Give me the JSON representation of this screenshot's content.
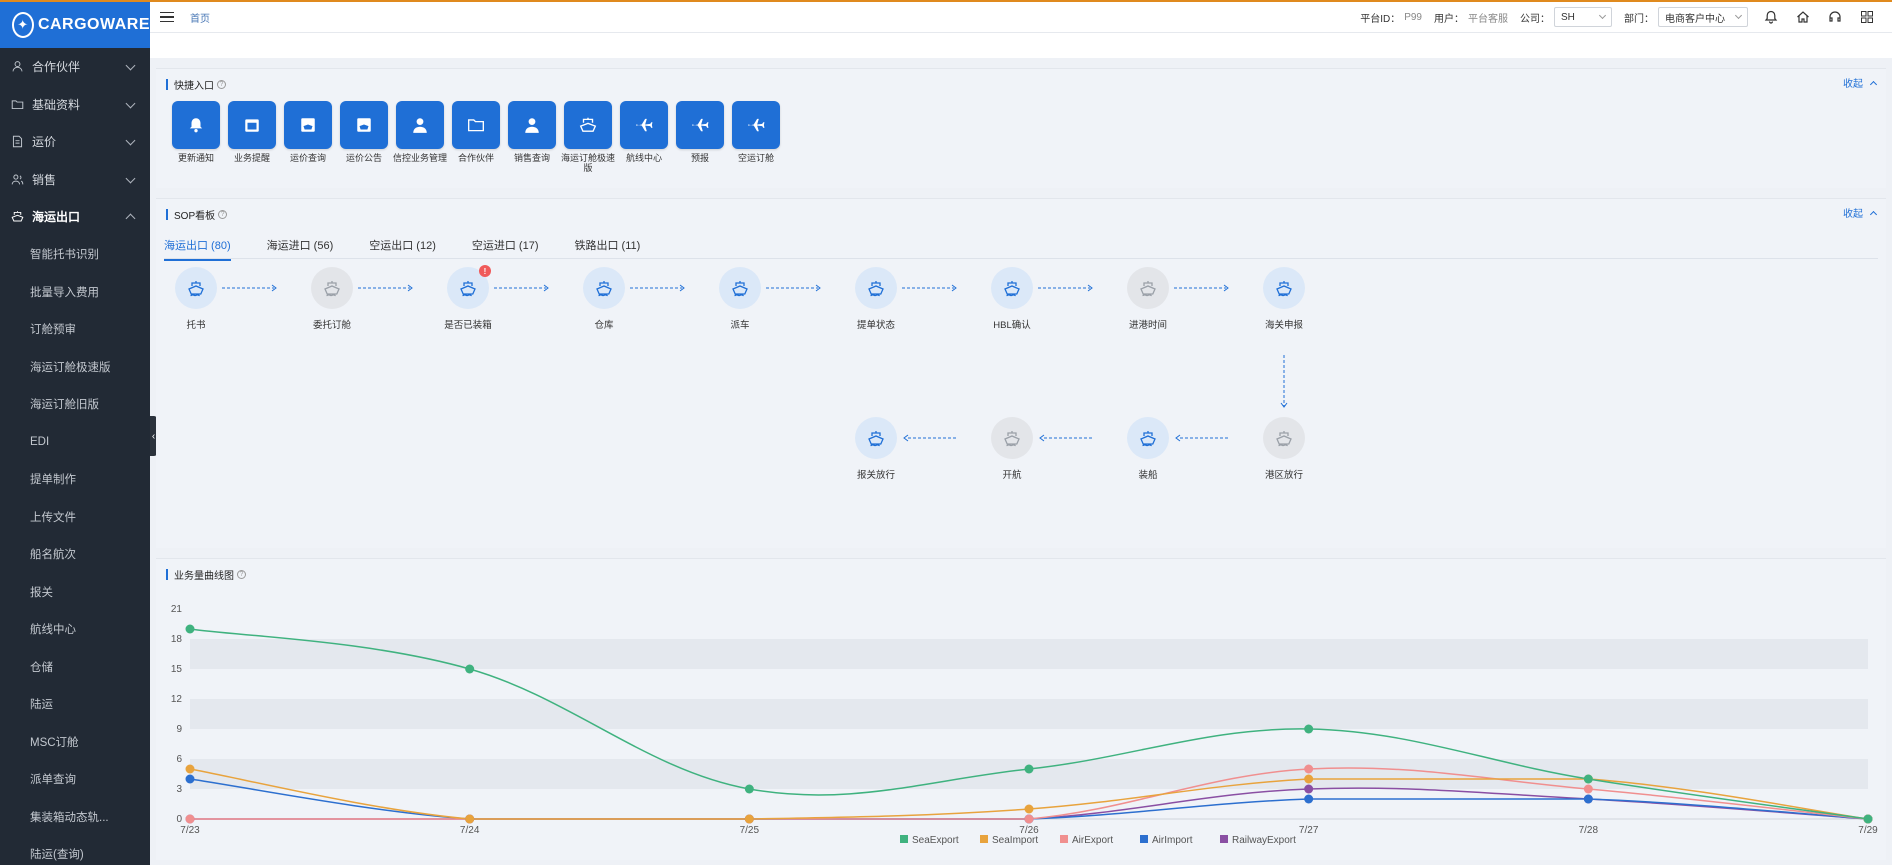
{
  "brand": {
    "name": "CARGOWARE",
    "color": "#1f6fd6"
  },
  "sidebar": {
    "groups": [
      {
        "label": "合作伙伴",
        "icon": "user-icon"
      },
      {
        "label": "基础资料",
        "icon": "folder-icon"
      },
      {
        "label": "运价",
        "icon": "document-icon"
      },
      {
        "label": "销售",
        "icon": "people-icon"
      },
      {
        "label": "海运出口",
        "icon": "ship-icon"
      }
    ],
    "subitems": [
      "智能托书识别",
      "批量导入费用",
      "订舱预审",
      "海运订舱极速版",
      "海运订舱旧版",
      "EDI",
      "提单制作",
      "上传文件",
      "船名航次",
      "报关",
      "航线中心",
      "仓储",
      "陆运",
      "MSC订舱",
      "派单查询",
      "集装箱动态轨...",
      "陆运(查询)"
    ]
  },
  "topbar": {
    "breadcrumb": "首页",
    "platform_label": "平台ID：",
    "platform_value": "P99",
    "user_label": "用户：",
    "user_value": "平台客服",
    "company_label": "公司：",
    "company_value": "SH",
    "dept_label": "部门：",
    "dept_value": "电商客户中心"
  },
  "quick": {
    "title": "快捷入口",
    "collapse": "收起",
    "items": [
      {
        "label": "更新通知",
        "icon": "bell-icon"
      },
      {
        "label": "业务提醒",
        "icon": "calendar-icon"
      },
      {
        "label": "运价查询",
        "icon": "ship-doc-icon"
      },
      {
        "label": "运价公告",
        "icon": "ship-doc-icon"
      },
      {
        "label": "信控业务管理",
        "icon": "person-icon"
      },
      {
        "label": "合作伙伴",
        "icon": "folder-icon"
      },
      {
        "label": "销售查询",
        "icon": "person-icon"
      },
      {
        "label": "海运订舱极速版",
        "icon": "ship-icon"
      },
      {
        "label": "航线中心",
        "icon": "plane-icon"
      },
      {
        "label": "预报",
        "icon": "plane-icon"
      },
      {
        "label": "空运订舱",
        "icon": "plane-icon"
      }
    ]
  },
  "sop": {
    "title": "SOP看板",
    "collapse": "收起",
    "tabs": [
      "海运出口 (80)",
      "海运进口 (56)",
      "空运出口 (12)",
      "空运进口 (17)",
      "铁路出口 (11)"
    ],
    "row1": [
      {
        "label": "托书",
        "state": "blue"
      },
      {
        "label": "委托订舱",
        "state": "gray"
      },
      {
        "label": "是否已装箱",
        "state": "blue",
        "badge": "!"
      },
      {
        "label": "仓库",
        "state": "blue"
      },
      {
        "label": "派车",
        "state": "blue"
      },
      {
        "label": "提单状态",
        "state": "blue"
      },
      {
        "label": "HBL确认",
        "state": "blue"
      },
      {
        "label": "进港时间",
        "state": "gray"
      },
      {
        "label": "海关申报",
        "state": "blue"
      }
    ],
    "row2": [
      {
        "label": "报关放行",
        "state": "blue"
      },
      {
        "label": "开航",
        "state": "gray"
      },
      {
        "label": "装船",
        "state": "blue"
      },
      {
        "label": "港区放行",
        "state": "gray"
      }
    ]
  },
  "chart_section": {
    "title": "业务量曲线图"
  },
  "chart_data": {
    "type": "line",
    "categories": [
      "7/23",
      "7/24",
      "7/25",
      "7/26",
      "7/27",
      "7/28",
      "7/29"
    ],
    "yticks": [
      0,
      3,
      6,
      9,
      12,
      15,
      18,
      21
    ],
    "ylim": [
      0,
      21
    ],
    "smooth": true,
    "grid": "horizontal bands",
    "legend": "bottom-center",
    "series": [
      {
        "name": "SeaExport",
        "color": "#3fb27f",
        "values": [
          19,
          15,
          3,
          5,
          9,
          4,
          0
        ]
      },
      {
        "name": "SeaImport",
        "color": "#e8a33d",
        "values": [
          5,
          0,
          0,
          1,
          4,
          4,
          0
        ]
      },
      {
        "name": "AirExport",
        "color": "#f08f8f",
        "values": [
          0,
          0,
          0,
          0,
          5,
          3,
          0
        ]
      },
      {
        "name": "AirImport",
        "color": "#2c6fcf",
        "values": [
          4,
          0,
          0,
          0,
          2,
          2,
          0
        ]
      },
      {
        "name": "RailwayExport",
        "color": "#8a4fa3",
        "values": [
          0,
          0,
          0,
          0,
          3,
          2,
          0
        ]
      }
    ]
  }
}
